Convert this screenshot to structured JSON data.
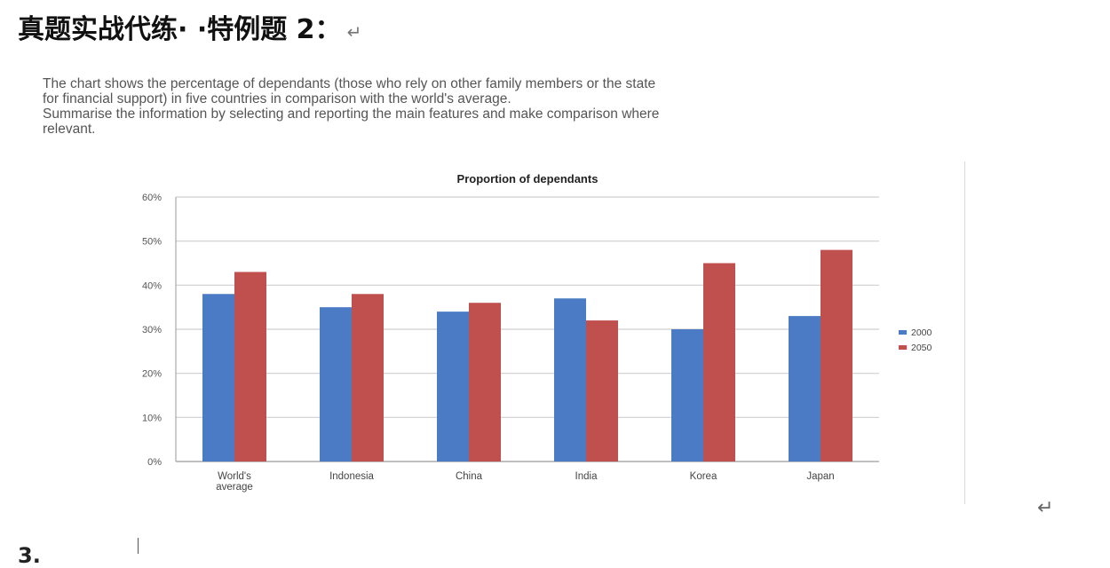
{
  "heading": {
    "text": "真题实战代练· ·特例题 2：",
    "return_mark": "↵"
  },
  "prompt": {
    "line1": "The chart shows the percentage of dependants (those who rely on other family members or the state",
    "line2": "for financial support) in five countries in comparison with the world's average.",
    "line3": "Summarise the information by selecting and reporting the main features and make comparison where",
    "line4": "relevant."
  },
  "trailing_return_mark": "↵",
  "next_line_fragment": "3.",
  "chart_data": {
    "type": "bar",
    "title": "Proportion of dependants",
    "categories": [
      "World's average",
      "Indonesia",
      "China",
      "India",
      "Korea",
      "Japan"
    ],
    "category_label_lines": [
      [
        "World's",
        "average"
      ],
      [
        "Indonesia"
      ],
      [
        "China"
      ],
      [
        "India"
      ],
      [
        "Korea"
      ],
      [
        "Japan"
      ]
    ],
    "series": [
      {
        "name": "2000",
        "values": [
          38,
          35,
          34,
          37,
          30,
          33
        ],
        "color": "#4a7bc4"
      },
      {
        "name": "2050",
        "values": [
          43,
          38,
          36,
          32,
          45,
          48
        ],
        "color": "#c0504d"
      }
    ],
    "yticks": [
      "0%",
      "10%",
      "20%",
      "30%",
      "40%",
      "50%",
      "60%"
    ],
    "ylim": [
      0,
      60
    ],
    "grid": true,
    "legend_position": "right"
  }
}
